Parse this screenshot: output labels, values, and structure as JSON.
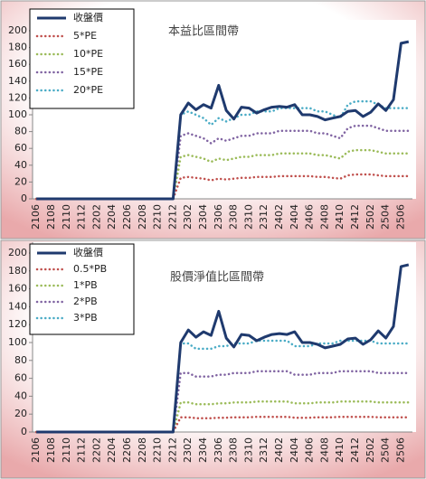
{
  "chart_data": [
    {
      "type": "line",
      "title": "本益比區間帶",
      "categories": [
        "2106",
        null,
        "2108",
        null,
        "2110",
        null,
        "2112",
        null,
        "2202",
        null,
        "2204",
        null,
        "2206",
        null,
        "2208",
        null,
        "2210",
        null,
        "2212",
        null,
        "2302",
        null,
        "2304",
        null,
        "2306",
        null,
        "2308",
        null,
        "2310",
        null,
        "2312",
        null,
        "2402",
        null,
        "2404",
        null,
        "2406",
        null,
        "2408",
        null,
        "2410",
        null,
        "2412",
        null,
        "2502",
        null,
        "2504",
        null,
        "2506",
        null
      ],
      "ylim": [
        0,
        200
      ],
      "yticks": [
        0,
        20,
        40,
        60,
        80,
        100,
        120,
        140,
        160,
        180,
        200
      ],
      "grid": false,
      "legend": "upper-left",
      "series": [
        {
          "name": "收盤價",
          "color": "#1f3a6e",
          "style": "solid",
          "values": [
            0,
            0,
            0,
            0,
            0,
            0,
            0,
            0,
            0,
            0,
            0,
            0,
            0,
            0,
            0,
            0,
            0,
            0,
            0,
            100,
            114,
            106,
            112,
            108,
            135,
            105,
            95,
            109,
            108,
            102,
            106,
            109,
            110,
            109,
            112,
            100,
            100,
            98,
            94,
            96,
            98,
            104,
            105,
            98,
            103,
            113,
            105,
            118,
            185,
            187
          ]
        },
        {
          "name": "5*PE",
          "color": "#c0504d",
          "style": "dotted",
          "values": [
            0,
            0,
            0,
            0,
            0,
            0,
            0,
            0,
            0,
            0,
            0,
            0,
            0,
            0,
            0,
            0,
            0,
            0,
            0,
            25,
            26,
            25,
            24,
            22,
            24,
            23,
            24,
            25,
            25,
            26,
            26,
            26,
            27,
            27,
            27,
            27,
            27,
            26,
            26,
            25,
            24,
            28,
            29,
            29,
            29,
            28,
            27,
            27,
            27,
            27
          ]
        },
        {
          "name": "10*PE",
          "color": "#9bbb59",
          "style": "dotted",
          "values": [
            0,
            0,
            0,
            0,
            0,
            0,
            0,
            0,
            0,
            0,
            0,
            0,
            0,
            0,
            0,
            0,
            0,
            0,
            0,
            50,
            52,
            50,
            48,
            44,
            48,
            46,
            48,
            50,
            50,
            52,
            52,
            52,
            54,
            54,
            54,
            54,
            54,
            52,
            52,
            50,
            48,
            56,
            58,
            58,
            58,
            56,
            54,
            54,
            54,
            54
          ]
        },
        {
          "name": "15*PE",
          "color": "#8064a2",
          "style": "dotted",
          "values": [
            0,
            0,
            0,
            0,
            0,
            0,
            0,
            0,
            0,
            0,
            0,
            0,
            0,
            0,
            0,
            0,
            0,
            0,
            0,
            75,
            78,
            75,
            72,
            66,
            72,
            69,
            72,
            75,
            75,
            78,
            78,
            78,
            81,
            81,
            81,
            81,
            81,
            78,
            78,
            75,
            72,
            84,
            87,
            87,
            87,
            84,
            81,
            81,
            81,
            81
          ]
        },
        {
          "name": "20*PE",
          "color": "#4bacc6",
          "style": "dotted",
          "values": [
            0,
            0,
            0,
            0,
            0,
            0,
            0,
            0,
            0,
            0,
            0,
            0,
            0,
            0,
            0,
            0,
            0,
            0,
            0,
            100,
            104,
            100,
            96,
            88,
            96,
            92,
            96,
            100,
            100,
            104,
            104,
            104,
            108,
            108,
            108,
            108,
            108,
            104,
            104,
            100,
            96,
            112,
            116,
            116,
            116,
            112,
            108,
            108,
            108,
            108
          ]
        }
      ]
    },
    {
      "type": "line",
      "title": "股價淨值比區間帶",
      "categories": [
        "2106",
        null,
        "2108",
        null,
        "2110",
        null,
        "2112",
        null,
        "2202",
        null,
        "2204",
        null,
        "2206",
        null,
        "2208",
        null,
        "2210",
        null,
        "2212",
        null,
        "2302",
        null,
        "2304",
        null,
        "2306",
        null,
        "2308",
        null,
        "2310",
        null,
        "2312",
        null,
        "2402",
        null,
        "2404",
        null,
        "2406",
        null,
        "2408",
        null,
        "2410",
        null,
        "2412",
        null,
        "2502",
        null,
        "2504",
        null,
        "2506",
        null
      ],
      "ylim": [
        0,
        200
      ],
      "yticks": [
        0,
        20,
        40,
        60,
        80,
        100,
        120,
        140,
        160,
        180,
        200
      ],
      "grid": false,
      "legend": "upper-left",
      "series": [
        {
          "name": "收盤價",
          "color": "#1f3a6e",
          "style": "solid",
          "values": [
            0,
            0,
            0,
            0,
            0,
            0,
            0,
            0,
            0,
            0,
            0,
            0,
            0,
            0,
            0,
            0,
            0,
            0,
            0,
            100,
            114,
            106,
            112,
            108,
            135,
            105,
            95,
            109,
            108,
            102,
            106,
            109,
            110,
            109,
            112,
            100,
            100,
            98,
            94,
            96,
            98,
            104,
            105,
            98,
            103,
            113,
            105,
            118,
            185,
            187
          ]
        },
        {
          "name": "0.5*PB",
          "color": "#c0504d",
          "style": "dotted",
          "values": [
            0,
            0,
            0,
            0,
            0,
            0,
            0,
            0,
            0,
            0,
            0,
            0,
            0,
            0,
            0,
            0,
            0,
            0,
            0,
            16.5,
            16.5,
            15.5,
            15.5,
            15.5,
            16,
            16,
            16.5,
            16.5,
            16.5,
            17,
            17,
            17,
            17,
            17,
            16,
            16,
            16,
            16.5,
            16.5,
            16.5,
            17,
            17,
            17,
            17,
            17,
            16.5,
            16.5,
            16.5,
            16.5,
            16.5
          ]
        },
        {
          "name": "1*PB",
          "color": "#9bbb59",
          "style": "dotted",
          "values": [
            0,
            0,
            0,
            0,
            0,
            0,
            0,
            0,
            0,
            0,
            0,
            0,
            0,
            0,
            0,
            0,
            0,
            0,
            0,
            33,
            33,
            31,
            31,
            31,
            32,
            32,
            33,
            33,
            33,
            34,
            34,
            34,
            34,
            34,
            32,
            32,
            32,
            33,
            33,
            33,
            34,
            34,
            34,
            34,
            34,
            33,
            33,
            33,
            33,
            33
          ]
        },
        {
          "name": "2*PB",
          "color": "#8064a2",
          "style": "dotted",
          "values": [
            0,
            0,
            0,
            0,
            0,
            0,
            0,
            0,
            0,
            0,
            0,
            0,
            0,
            0,
            0,
            0,
            0,
            0,
            0,
            66,
            66,
            62,
            62,
            62,
            64,
            64,
            66,
            66,
            66,
            68,
            68,
            68,
            68,
            68,
            64,
            64,
            64,
            66,
            66,
            66,
            68,
            68,
            68,
            68,
            68,
            66,
            66,
            66,
            66,
            66
          ]
        },
        {
          "name": "3*PB",
          "color": "#4bacc6",
          "style": "dotted",
          "values": [
            0,
            0,
            0,
            0,
            0,
            0,
            0,
            0,
            0,
            0,
            0,
            0,
            0,
            0,
            0,
            0,
            0,
            0,
            0,
            99,
            99,
            93,
            93,
            93,
            96,
            96,
            99,
            99,
            99,
            102,
            102,
            102,
            102,
            102,
            96,
            96,
            96,
            99,
            99,
            99,
            102,
            102,
            102,
            102,
            102,
            99,
            99,
            99,
            99,
            99
          ]
        }
      ]
    }
  ]
}
